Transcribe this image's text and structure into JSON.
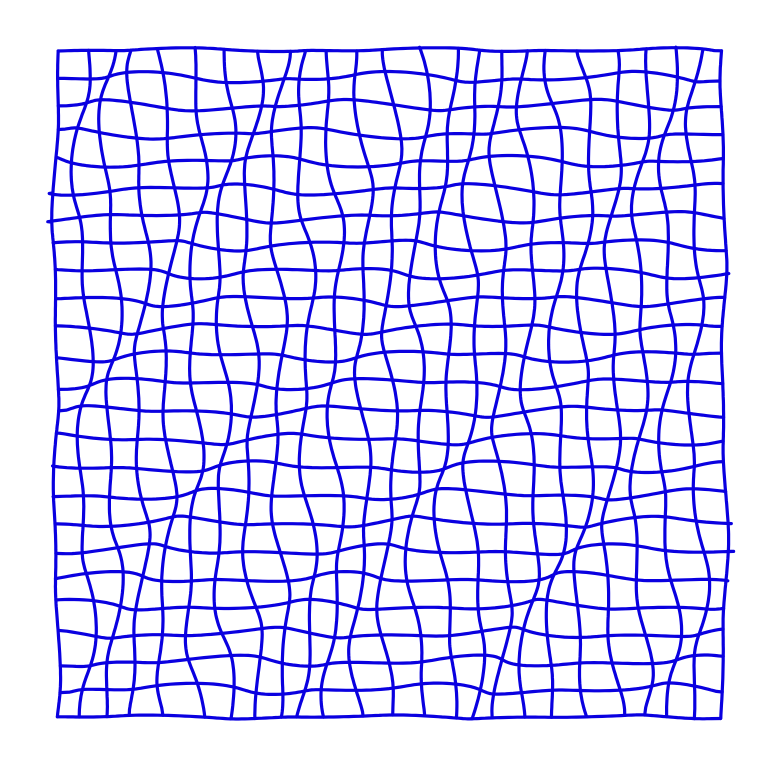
{
  "diagram": {
    "type": "deformed-grid",
    "rows": 24,
    "columns": 24,
    "line_color": "#0a00e0",
    "background": "#ffffff"
  }
}
